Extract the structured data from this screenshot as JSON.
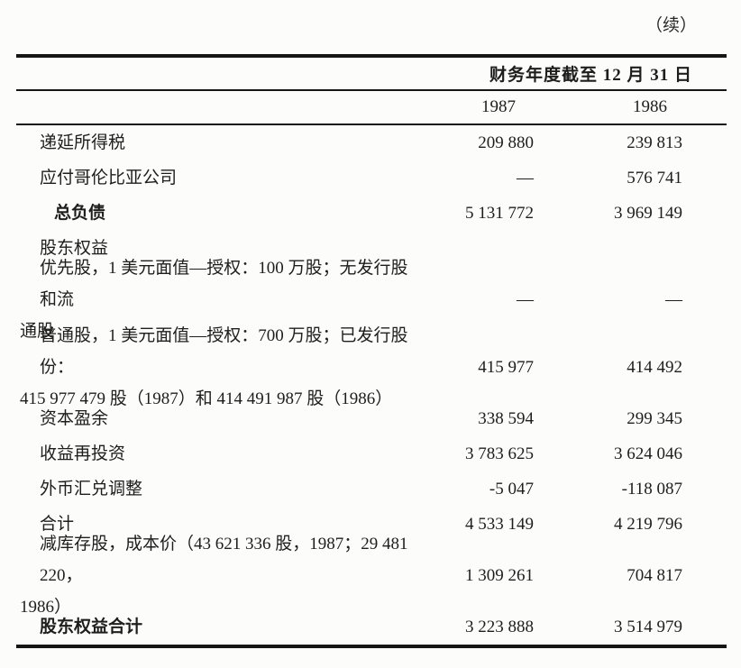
{
  "page": {
    "continued_marker": "（续）"
  },
  "table": {
    "header": {
      "period_label": "财务年度截至 12 月 31 日",
      "col_1987": "1987",
      "col_1986": "1986"
    },
    "rows": [
      {
        "label_lines": [
          "递延所得税"
        ],
        "v1987": "209 880",
        "v1986": "239 813"
      },
      {
        "label_lines": [
          "应付哥伦比亚公司"
        ],
        "v1987": "—",
        "v1986": "576 741"
      },
      {
        "label_lines": [
          "总负债"
        ],
        "v1987": "5 131 772",
        "v1986": "3 969 149"
      },
      {
        "label_lines": [
          "股东权益"
        ],
        "v1987": "",
        "v1986": ""
      },
      {
        "label_lines": [
          "优先股，1 美元面值—授权：100 万股；无发行股和流",
          "通股"
        ],
        "v1987": "—",
        "v1986": "—"
      },
      {
        "label_lines": [
          "普通股，1 美元面值—授权：700 万股；已发行股份：",
          "415 977 479 股（1987）和 414 491 987 股（1986）"
        ],
        "v1987": "415 977",
        "v1986": "414 492"
      },
      {
        "label_lines": [
          "资本盈余"
        ],
        "v1987": "338 594",
        "v1986": "299 345"
      },
      {
        "label_lines": [
          "收益再投资"
        ],
        "v1987": "3 783 625",
        "v1986": "3 624 046"
      },
      {
        "label_lines": [
          "外币汇兑调整"
        ],
        "v1987": "-5 047",
        "v1986": "-118 087"
      },
      {
        "label_lines": [
          "合计"
        ],
        "v1987": "4 533 149",
        "v1986": "4 219 796"
      },
      {
        "label_lines": [
          "减库存股，成本价（43 621 336 股，1987；29 481 220，",
          "1986）"
        ],
        "v1987": "1 309 261",
        "v1986": "704 817"
      },
      {
        "label_lines": [
          "股东权益合计"
        ],
        "v1987": "3 223 888",
        "v1986": "3 514 979"
      }
    ]
  }
}
